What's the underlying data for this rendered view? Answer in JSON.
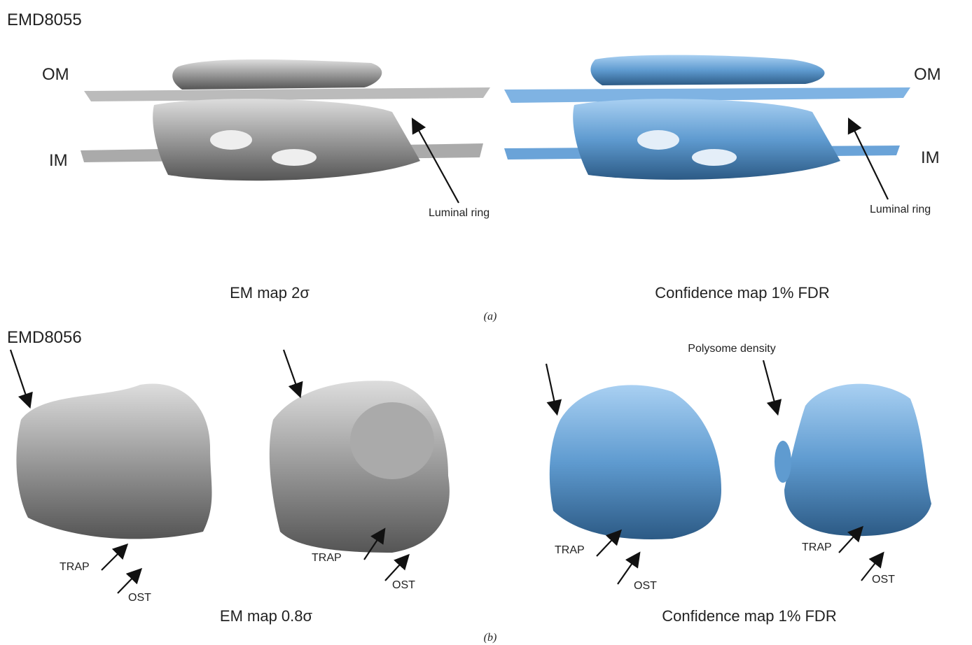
{
  "panels": [
    {
      "id_label": "EMD8055",
      "caption": "(a)",
      "views": [
        {
          "title": "EM map 2σ",
          "labels": [
            "OM",
            "IM",
            "Luminal ring"
          ]
        },
        {
          "title": "Confidence map 1% FDR",
          "labels": [
            "OM",
            "IM",
            "Luminal ring"
          ]
        }
      ]
    },
    {
      "id_label": "EMD8056",
      "caption": "(b)",
      "views": [
        {
          "title": "EM map 0.8σ",
          "labels": [
            "TRAP",
            "OST",
            "TRAP",
            "OST"
          ]
        },
        {
          "title": "Confidence map 1% FDR",
          "labels": [
            "Polysome density",
            "TRAP",
            "OST",
            "TRAP",
            "OST"
          ]
        }
      ]
    }
  ]
}
